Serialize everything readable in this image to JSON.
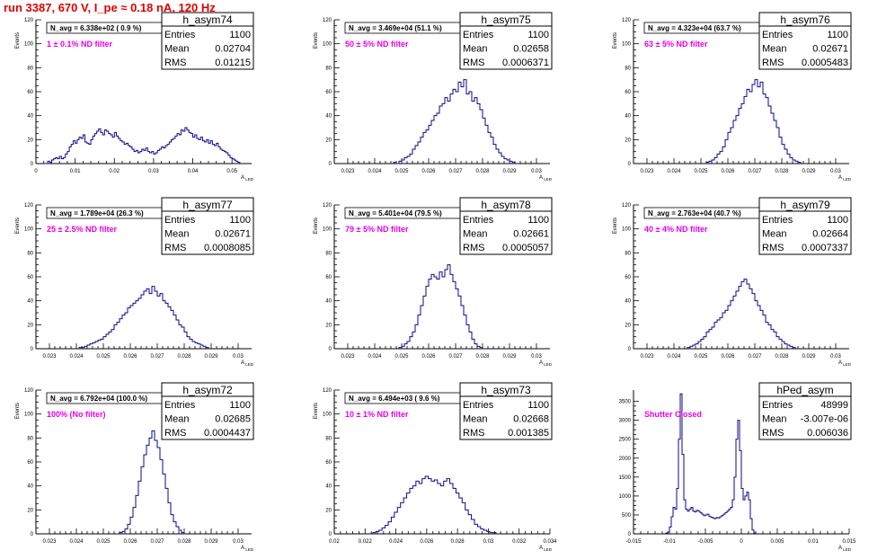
{
  "page_title": "run 3387,   670 V, I_pe ≈ 0.18 nA, 120 Hz",
  "chart_data": [
    {
      "type": "bar",
      "name": "h_asym74",
      "ylabel": "Events",
      "xlabel": "A_LED",
      "xlim": [
        0,
        0.055
      ],
      "ylim": [
        0,
        120
      ],
      "xticks": [
        "0",
        "0.01",
        "0.02",
        "0.03",
        "0.04",
        "0.05"
      ],
      "yticks": [
        "0",
        "20",
        "40",
        "60",
        "80",
        "100",
        "120"
      ],
      "navg": "N_avg = 6.338e+02 ( 0.9 %)",
      "filter": "1 ± 0.1% ND filter",
      "stats": {
        "Entries": "1100",
        "Mean": "0.02704",
        "RMS": "0.01215"
      },
      "bin_x0": 0.002,
      "bin_width": 0.0005,
      "counts": [
        0,
        0,
        2,
        1,
        3,
        4,
        5,
        4,
        6,
        4,
        5,
        8,
        10,
        14,
        16,
        19,
        17,
        20,
        22,
        21,
        24,
        18,
        17,
        16,
        20,
        23,
        25,
        27,
        29,
        26,
        24,
        28,
        27,
        25,
        24,
        22,
        26,
        23,
        21,
        19,
        18,
        16,
        17,
        15,
        14,
        12,
        10,
        11,
        9,
        10,
        12,
        11,
        13,
        10,
        9,
        10,
        8,
        9,
        11,
        12,
        14,
        13,
        15,
        16,
        18,
        20,
        21,
        23,
        25,
        24,
        28,
        27,
        30,
        28,
        26,
        25,
        22,
        24,
        21,
        20,
        22,
        19,
        18,
        20,
        17,
        19,
        16,
        15,
        17,
        14,
        12,
        11,
        10,
        9,
        7,
        5,
        4,
        3,
        2,
        1
      ]
    },
    {
      "type": "bar",
      "name": "h_asym75",
      "ylabel": "Events",
      "xlabel": "A_LED",
      "xlim": [
        0.0225,
        0.0305
      ],
      "ylim": [
        0,
        120
      ],
      "xticks": [
        "0.023",
        "0.024",
        "0.025",
        "0.026",
        "0.027",
        "0.028",
        "0.029",
        "0.03"
      ],
      "yticks": [
        "0",
        "20",
        "40",
        "60",
        "80",
        "100",
        "120"
      ],
      "navg": "N_avg = 3.469e+04 (51.1 %)",
      "filter": "50 ± 5% ND filter",
      "stats": {
        "Entries": "1100",
        "Mean": "0.02658",
        "RMS": "0.0006371"
      },
      "bin_x0": 0.0247,
      "bin_width": 0.0001,
      "counts": [
        1,
        0,
        2,
        3,
        5,
        6,
        8,
        12,
        15,
        18,
        22,
        26,
        28,
        32,
        36,
        40,
        42,
        48,
        50,
        55,
        52,
        58,
        62,
        60,
        68,
        64,
        70,
        58,
        60,
        52,
        55,
        50,
        45,
        38,
        32,
        26,
        22,
        16,
        12,
        9,
        6,
        4,
        3,
        2,
        1
      ]
    },
    {
      "type": "bar",
      "name": "h_asym76",
      "ylabel": "Events",
      "xlabel": "A_LED",
      "xlim": [
        0.0225,
        0.0305
      ],
      "ylim": [
        0,
        120
      ],
      "xticks": [
        "0.023",
        "0.024",
        "0.025",
        "0.026",
        "0.027",
        "0.028",
        "0.029",
        "0.03"
      ],
      "yticks": [
        "0",
        "20",
        "40",
        "60",
        "80",
        "100",
        "120"
      ],
      "navg": "N_avg = 4.323e+04 (63.7 %)",
      "filter": "63 ± 5% ND filter",
      "stats": {
        "Entries": "1100",
        "Mean": "0.02671",
        "RMS": "0.0005483"
      },
      "bin_x0": 0.0252,
      "bin_width": 0.0001,
      "counts": [
        1,
        2,
        3,
        5,
        8,
        10,
        14,
        20,
        26,
        30,
        36,
        40,
        46,
        50,
        56,
        62,
        60,
        66,
        70,
        64,
        68,
        58,
        55,
        48,
        42,
        36,
        30,
        22,
        16,
        12,
        8,
        5,
        3,
        2,
        1
      ]
    },
    {
      "type": "bar",
      "name": "h_asym77",
      "ylabel": "Events",
      "xlabel": "A_LED",
      "xlim": [
        0.0225,
        0.0305
      ],
      "ylim": [
        0,
        120
      ],
      "xticks": [
        "0.023",
        "0.024",
        "0.025",
        "0.026",
        "0.027",
        "0.028",
        "0.029",
        "0.03"
      ],
      "yticks": [
        "0",
        "20",
        "40",
        "60",
        "80",
        "100",
        "120"
      ],
      "navg": "N_avg = 1.789e+04 (26.3 %)",
      "filter": "25 ± 2.5% ND filter",
      "stats": {
        "Entries": "1100",
        "Mean": "0.02671",
        "RMS": "0.0008085"
      },
      "bin_x0": 0.0241,
      "bin_width": 0.0001,
      "counts": [
        1,
        1,
        2,
        3,
        4,
        5,
        6,
        7,
        8,
        10,
        12,
        14,
        16,
        20,
        22,
        25,
        28,
        30,
        34,
        36,
        38,
        40,
        42,
        45,
        48,
        50,
        46,
        52,
        48,
        44,
        46,
        40,
        38,
        35,
        32,
        28,
        24,
        20,
        18,
        14,
        10,
        8,
        6,
        5,
        4,
        3,
        2,
        1
      ]
    },
    {
      "type": "bar",
      "name": "h_asym78",
      "ylabel": "Events",
      "xlabel": "A_LED",
      "xlim": [
        0.0225,
        0.0305
      ],
      "ylim": [
        0,
        120
      ],
      "xticks": [
        "0.023",
        "0.024",
        "0.025",
        "0.026",
        "0.027",
        "0.028",
        "0.029",
        "0.03"
      ],
      "yticks": [
        "0",
        "20",
        "40",
        "60",
        "80",
        "100",
        "120"
      ],
      "navg": "N_avg = 5.401e+04 (79.5 %)",
      "filter": "79 ± 5% ND filter",
      "stats": {
        "Entries": "1100",
        "Mean": "0.02661",
        "RMS": "0.0005057"
      },
      "bin_x0": 0.0249,
      "bin_width": 0.0001,
      "counts": [
        1,
        2,
        4,
        6,
        10,
        14,
        20,
        28,
        36,
        44,
        52,
        58,
        62,
        60,
        58,
        64,
        60,
        66,
        70,
        62,
        56,
        50,
        44,
        36,
        28,
        20,
        14,
        8,
        4,
        2,
        1
      ]
    },
    {
      "type": "bar",
      "name": "h_asym79",
      "ylabel": "Events",
      "xlabel": "A_LED",
      "xlim": [
        0.0225,
        0.0305
      ],
      "ylim": [
        0,
        120
      ],
      "xticks": [
        "0.023",
        "0.024",
        "0.025",
        "0.026",
        "0.027",
        "0.028",
        "0.029",
        "0.03"
      ],
      "yticks": [
        "0",
        "20",
        "40",
        "60",
        "80",
        "100",
        "120"
      ],
      "navg": "N_avg = 2.763e+04 (40.7 %)",
      "filter": "40 ± 4% ND filter",
      "stats": {
        "Entries": "1100",
        "Mean": "0.02664",
        "RMS": "0.0007337"
      },
      "bin_x0": 0.0245,
      "bin_width": 0.0001,
      "counts": [
        1,
        2,
        3,
        4,
        6,
        8,
        10,
        14,
        16,
        18,
        22,
        24,
        26,
        30,
        32,
        36,
        40,
        44,
        48,
        52,
        56,
        58,
        54,
        50,
        46,
        40,
        36,
        32,
        28,
        22,
        20,
        16,
        14,
        10,
        8,
        6,
        4,
        3,
        2,
        1
      ]
    },
    {
      "type": "bar",
      "name": "h_asym72",
      "ylabel": "Events",
      "xlabel": "A_LED",
      "xlim": [
        0.0225,
        0.0305
      ],
      "ylim": [
        0,
        120
      ],
      "xticks": [
        "0.023",
        "0.024",
        "0.025",
        "0.026",
        "0.027",
        "0.028",
        "0.029",
        "0.03"
      ],
      "yticks": [
        "0",
        "20",
        "40",
        "60",
        "80",
        "100",
        "120"
      ],
      "navg": "N_avg = 6.792e+04 (100.0 %)",
      "filter": "100% (No filter)",
      "stats": {
        "Entries": "1100",
        "Mean": "0.02685",
        "RMS": "0.0004437"
      },
      "bin_x0": 0.0256,
      "bin_width": 0.0001,
      "counts": [
        1,
        2,
        4,
        8,
        14,
        22,
        32,
        44,
        56,
        66,
        74,
        80,
        86,
        78,
        72,
        62,
        50,
        38,
        26,
        16,
        10,
        6,
        3,
        1
      ]
    },
    {
      "type": "bar",
      "name": "h_asym73",
      "ylabel": "Events",
      "xlabel": "A_LED",
      "xlim": [
        0.02,
        0.034
      ],
      "ylim": [
        0,
        120
      ],
      "xticks": [
        "0.02",
        "0.022",
        "0.024",
        "0.026",
        "0.028",
        "0.03",
        "0.032",
        "0.034"
      ],
      "yticks": [
        "0",
        "20",
        "40",
        "60",
        "80",
        "100",
        "120"
      ],
      "navg": "N_avg = 6.494e+03 ( 9.6 %)",
      "filter": "10 ± 1% ND filter",
      "stats": {
        "Entries": "1100",
        "Mean": "0.02668",
        "RMS": "0.001385"
      },
      "bin_x0": 0.0225,
      "bin_width": 0.0002,
      "counts": [
        1,
        2,
        3,
        5,
        7,
        10,
        14,
        18,
        22,
        26,
        30,
        34,
        38,
        40,
        44,
        42,
        46,
        48,
        46,
        44,
        45,
        42,
        40,
        44,
        46,
        42,
        38,
        34,
        30,
        26,
        20,
        16,
        12,
        8,
        6,
        4,
        3,
        2,
        1,
        1
      ]
    },
    {
      "type": "bar",
      "name": "hPed_asym",
      "ylabel": "",
      "xlabel": "A_LED",
      "xlim": [
        -0.015,
        0.015
      ],
      "ylim": [
        0,
        3800
      ],
      "xticks": [
        "-0.015",
        "-0.01",
        "-0.005",
        "0",
        "0.005",
        "0.01",
        "0.015"
      ],
      "yticks": [
        "0",
        "500",
        "1000",
        "1500",
        "2000",
        "2500",
        "3000",
        "3500"
      ],
      "navg": "",
      "filter": "Shutter Closed",
      "stats": {
        "Entries": "48999",
        "Mean": "-3.007e-06",
        "RMS": "0.006036"
      },
      "bin_x0": -0.0105,
      "bin_width": 0.00025,
      "counts": [
        20,
        50,
        180,
        450,
        700,
        650,
        1200,
        2500,
        3700,
        2100,
        900,
        650,
        600,
        650,
        700,
        600,
        580,
        620,
        600,
        560,
        520,
        480,
        500,
        520,
        460,
        440,
        420,
        400,
        430,
        420,
        450,
        480,
        520,
        560,
        600,
        650,
        700,
        900,
        1500,
        2500,
        3000,
        2200,
        1200,
        900,
        1000,
        1100,
        900,
        400,
        100,
        20
      ]
    }
  ]
}
